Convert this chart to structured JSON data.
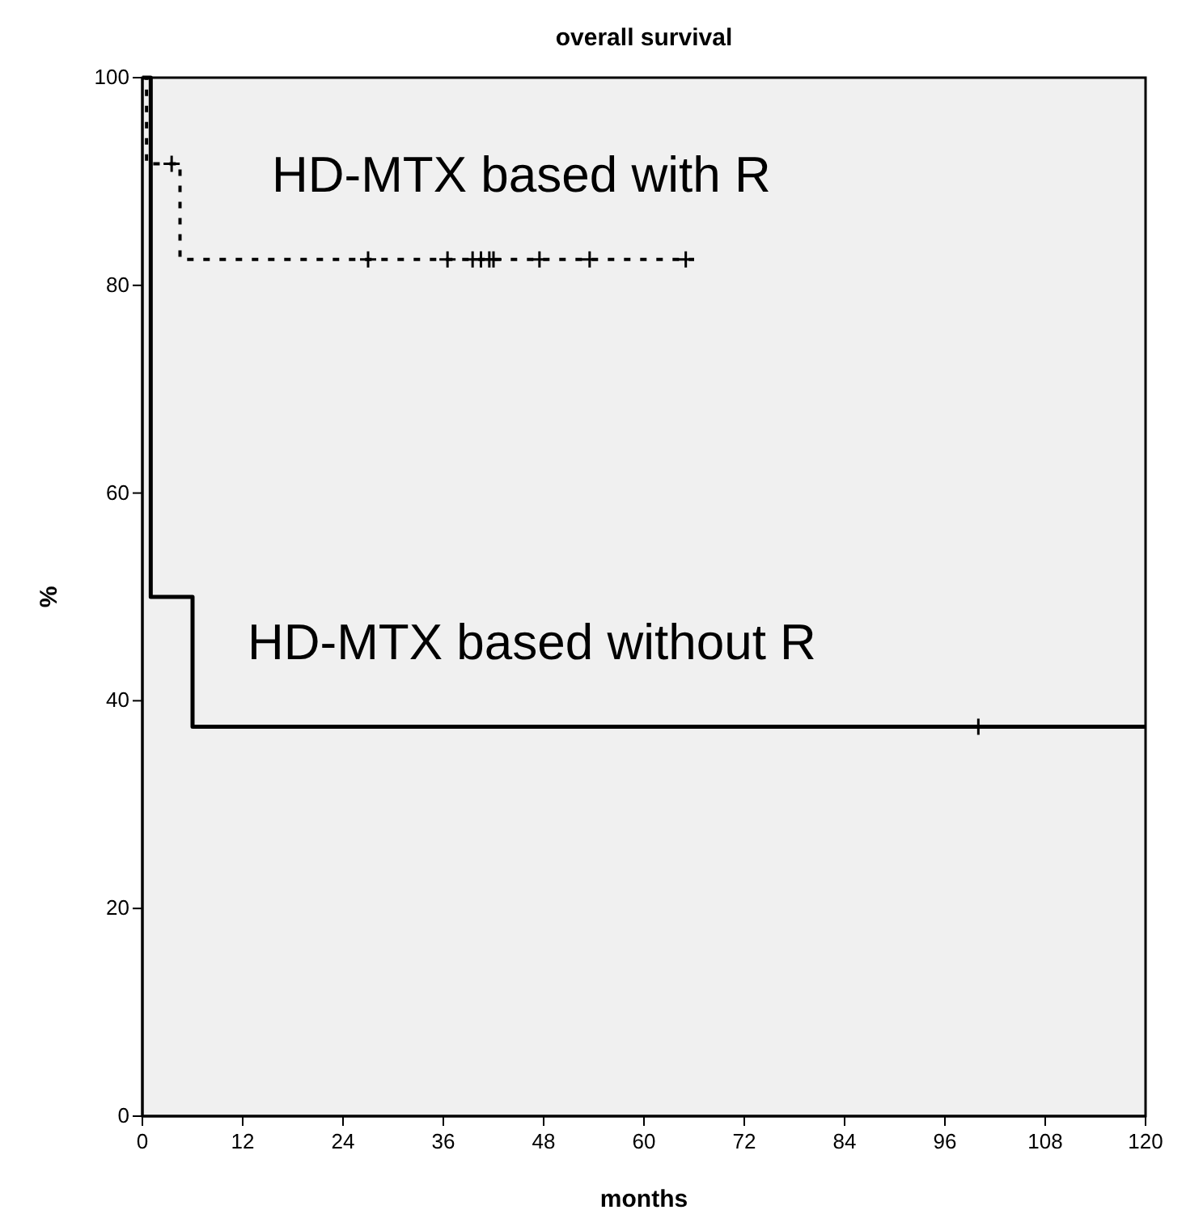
{
  "chart_data": {
    "type": "step",
    "title": "overall survival",
    "xlabel": "months",
    "ylabel": "%",
    "xlim": [
      0,
      120
    ],
    "xticks": [
      0,
      12,
      24,
      36,
      48,
      60,
      72,
      84,
      96,
      108,
      120
    ],
    "ylim": [
      0,
      100
    ],
    "yticks": [
      0,
      20,
      40,
      60,
      80,
      100
    ],
    "grid": false,
    "series": [
      {
        "name": "HD-MTX based with R",
        "color": "#000000",
        "line_style": "dashed",
        "marker": "none",
        "x": [
          0,
          0.5,
          4.5,
          66
        ],
        "values": [
          100,
          91.7,
          82.5,
          82.5
        ]
      },
      {
        "name": "HD-MTX based without R",
        "color": "#000000",
        "line_style": "solid",
        "marker": "none",
        "x": [
          0,
          1,
          6,
          120
        ],
        "values": [
          100,
          50,
          37.5,
          37.5
        ]
      },
      {
        "type": "scatter",
        "color": "#000000",
        "marker": "cross",
        "x": [
          3.5,
          27,
          36.5,
          39.5,
          40.5,
          41.5,
          42,
          47.5,
          53.5,
          65
        ],
        "values": [
          91.7,
          82.5,
          82.5,
          82.5,
          82.5,
          82.5,
          82.5,
          82.5,
          82.5,
          82.5
        ]
      },
      {
        "type": "scatter",
        "color": "#000000",
        "marker": "cross",
        "x": [
          100
        ],
        "values": [
          37.5
        ]
      }
    ]
  }
}
